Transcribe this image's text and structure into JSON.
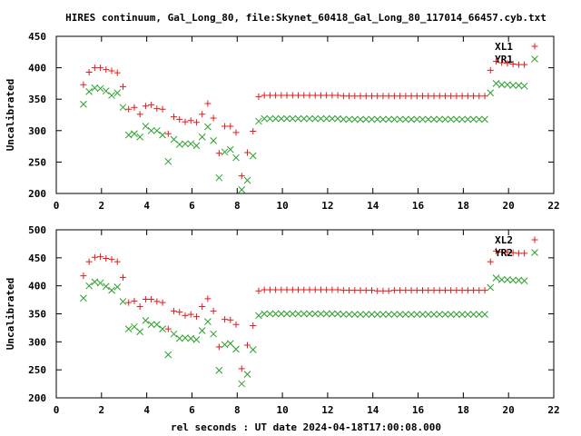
{
  "title": "HIRES continuum, Gal_Long_80, file:Skynet_60418_Gal_Long_80_117014_66457.cyb.txt",
  "xlabel": "rel seconds : UT date 2024-04-18T17:00:08.000",
  "colors": {
    "red": "#e41a1c",
    "green": "#2ca02c"
  },
  "chart_data": [
    {
      "type": "scatter",
      "ylabel": "Uncalibrated",
      "xlim": [
        0,
        22
      ],
      "ylim": [
        200,
        450
      ],
      "xticks": [
        0,
        2,
        4,
        6,
        8,
        10,
        12,
        14,
        16,
        18,
        20,
        22
      ],
      "yticks": [
        200,
        250,
        300,
        350,
        400,
        450
      ],
      "legend": "top-right",
      "series": [
        {
          "name": "XL1",
          "marker": "plus",
          "color": "#e41a1c",
          "x": [
            1.2,
            1.45,
            1.7,
            1.95,
            2.2,
            2.45,
            2.7,
            2.95,
            3.2,
            3.45,
            3.7,
            3.95,
            4.2,
            4.45,
            4.7,
            4.95,
            5.2,
            5.45,
            5.7,
            5.95,
            6.2,
            6.45,
            6.7,
            6.95,
            7.2,
            7.45,
            7.7,
            7.95,
            8.2,
            8.45,
            8.7,
            8.95,
            9.2,
            9.45,
            9.7,
            9.95,
            10.2,
            10.45,
            10.7,
            10.95,
            11.2,
            11.45,
            11.7,
            11.95,
            12.2,
            12.45,
            12.7,
            12.95,
            13.2,
            13.45,
            13.7,
            13.95,
            14.2,
            14.45,
            14.7,
            14.95,
            15.2,
            15.45,
            15.7,
            15.95,
            16.2,
            16.45,
            16.7,
            16.95,
            17.2,
            17.45,
            17.7,
            17.95,
            18.2,
            18.45,
            18.7,
            18.95,
            19.2,
            19.45,
            19.7,
            19.95,
            20.2,
            20.45,
            20.7
          ],
          "y": [
            373,
            393,
            400,
            400,
            397,
            395,
            392,
            370,
            334,
            337,
            326,
            339,
            341,
            335,
            334,
            295,
            322,
            318,
            314,
            316,
            313,
            326,
            343,
            320,
            264,
            307,
            307,
            297,
            228,
            265,
            299,
            354,
            356,
            356,
            356,
            356,
            356,
            356,
            356,
            356,
            356,
            356,
            356,
            356,
            356,
            356,
            355,
            355,
            355,
            355,
            355,
            355,
            355,
            355,
            355,
            355,
            355,
            355,
            355,
            355,
            355,
            355,
            355,
            355,
            355,
            355,
            355,
            355,
            355,
            355,
            355,
            355,
            396,
            410,
            408,
            407,
            406,
            405,
            405
          ]
        },
        {
          "name": "YR1",
          "marker": "x",
          "color": "#2ca02c",
          "x": [
            1.2,
            1.45,
            1.7,
            1.95,
            2.2,
            2.45,
            2.7,
            2.95,
            3.2,
            3.45,
            3.7,
            3.95,
            4.2,
            4.45,
            4.7,
            4.95,
            5.2,
            5.45,
            5.7,
            5.95,
            6.2,
            6.45,
            6.7,
            6.95,
            7.2,
            7.45,
            7.7,
            7.95,
            8.2,
            8.45,
            8.7,
            8.95,
            9.2,
            9.45,
            9.7,
            9.95,
            10.2,
            10.45,
            10.7,
            10.95,
            11.2,
            11.45,
            11.7,
            11.95,
            12.2,
            12.45,
            12.7,
            12.95,
            13.2,
            13.45,
            13.7,
            13.95,
            14.2,
            14.45,
            14.7,
            14.95,
            15.2,
            15.45,
            15.7,
            15.95,
            16.2,
            16.45,
            16.7,
            16.95,
            17.2,
            17.45,
            17.7,
            17.95,
            18.2,
            18.45,
            18.7,
            18.95,
            19.2,
            19.45,
            19.7,
            19.95,
            20.2,
            20.45,
            20.7
          ],
          "y": [
            342,
            362,
            368,
            367,
            363,
            356,
            360,
            337,
            293,
            295,
            290,
            307,
            300,
            300,
            293,
            251,
            286,
            278,
            279,
            279,
            276,
            290,
            306,
            284,
            225,
            266,
            270,
            257,
            206,
            221,
            260,
            315,
            319,
            319,
            319,
            319,
            319,
            319,
            319,
            319,
            319,
            319,
            319,
            319,
            319,
            319,
            318,
            318,
            318,
            318,
            318,
            318,
            318,
            318,
            318,
            318,
            318,
            318,
            318,
            318,
            318,
            318,
            318,
            318,
            318,
            318,
            318,
            318,
            318,
            318,
            318,
            318,
            360,
            375,
            373,
            373,
            372,
            372,
            371
          ]
        }
      ]
    },
    {
      "type": "scatter",
      "ylabel": "Uncalibrated",
      "xlim": [
        0,
        22
      ],
      "ylim": [
        200,
        500
      ],
      "xticks": [
        0,
        2,
        4,
        6,
        8,
        10,
        12,
        14,
        16,
        18,
        20,
        22
      ],
      "yticks": [
        200,
        250,
        300,
        350,
        400,
        450,
        500
      ],
      "legend": "top-right",
      "series": [
        {
          "name": "XL2",
          "marker": "plus",
          "color": "#e41a1c",
          "x": [
            1.2,
            1.45,
            1.7,
            1.95,
            2.2,
            2.45,
            2.7,
            2.95,
            3.2,
            3.45,
            3.7,
            3.95,
            4.2,
            4.45,
            4.7,
            4.95,
            5.2,
            5.45,
            5.7,
            5.95,
            6.2,
            6.45,
            6.7,
            6.95,
            7.2,
            7.45,
            7.7,
            7.95,
            8.2,
            8.45,
            8.7,
            8.95,
            9.2,
            9.45,
            9.7,
            9.95,
            10.2,
            10.45,
            10.7,
            10.95,
            11.2,
            11.45,
            11.7,
            11.95,
            12.2,
            12.45,
            12.7,
            12.95,
            13.2,
            13.45,
            13.7,
            13.95,
            14.2,
            14.45,
            14.7,
            14.95,
            15.2,
            15.45,
            15.7,
            15.95,
            16.2,
            16.45,
            16.7,
            16.95,
            17.2,
            17.45,
            17.7,
            17.95,
            18.2,
            18.45,
            18.7,
            18.95,
            19.2,
            19.45,
            19.7,
            19.95,
            20.2,
            20.45,
            20.7
          ],
          "y": [
            418,
            443,
            451,
            452,
            449,
            447,
            443,
            415,
            370,
            373,
            363,
            376,
            376,
            372,
            370,
            323,
            355,
            353,
            347,
            349,
            345,
            363,
            377,
            355,
            291,
            340,
            339,
            331,
            252,
            294,
            329,
            391,
            393,
            393,
            393,
            393,
            393,
            393,
            393,
            393,
            393,
            393,
            393,
            393,
            393,
            393,
            392,
            392,
            392,
            392,
            392,
            392,
            391,
            391,
            391,
            392,
            392,
            392,
            392,
            392,
            392,
            392,
            392,
            392,
            392,
            392,
            392,
            392,
            392,
            392,
            392,
            392,
            443,
            462,
            460,
            460,
            459,
            458,
            458
          ]
        },
        {
          "name": "YR2",
          "marker": "x",
          "color": "#2ca02c",
          "x": [
            1.2,
            1.45,
            1.7,
            1.95,
            2.2,
            2.45,
            2.7,
            2.95,
            3.2,
            3.45,
            3.7,
            3.95,
            4.2,
            4.45,
            4.7,
            4.95,
            5.2,
            5.45,
            5.7,
            5.95,
            6.2,
            6.45,
            6.7,
            6.95,
            7.2,
            7.45,
            7.7,
            7.95,
            8.2,
            8.45,
            8.7,
            8.95,
            9.2,
            9.45,
            9.7,
            9.95,
            10.2,
            10.45,
            10.7,
            10.95,
            11.2,
            11.45,
            11.7,
            11.95,
            12.2,
            12.45,
            12.7,
            12.95,
            13.2,
            13.45,
            13.7,
            13.95,
            14.2,
            14.45,
            14.7,
            14.95,
            15.2,
            15.45,
            15.7,
            15.95,
            16.2,
            16.45,
            16.7,
            16.95,
            17.2,
            17.45,
            17.7,
            17.95,
            18.2,
            18.45,
            18.7,
            18.95,
            19.2,
            19.45,
            19.7,
            19.95,
            20.2,
            20.45,
            20.7
          ],
          "y": [
            378,
            400,
            407,
            405,
            399,
            392,
            398,
            372,
            323,
            327,
            318,
            338,
            331,
            331,
            323,
            277,
            314,
            306,
            307,
            306,
            304,
            320,
            336,
            314,
            249,
            295,
            297,
            287,
            225,
            242,
            286,
            347,
            350,
            350,
            350,
            350,
            350,
            350,
            350,
            350,
            350,
            350,
            350,
            350,
            350,
            350,
            349,
            349,
            349,
            349,
            349,
            349,
            349,
            349,
            349,
            349,
            349,
            349,
            349,
            349,
            349,
            349,
            349,
            349,
            349,
            349,
            349,
            349,
            349,
            349,
            349,
            349,
            397,
            414,
            411,
            411,
            410,
            410,
            409
          ]
        }
      ]
    }
  ]
}
